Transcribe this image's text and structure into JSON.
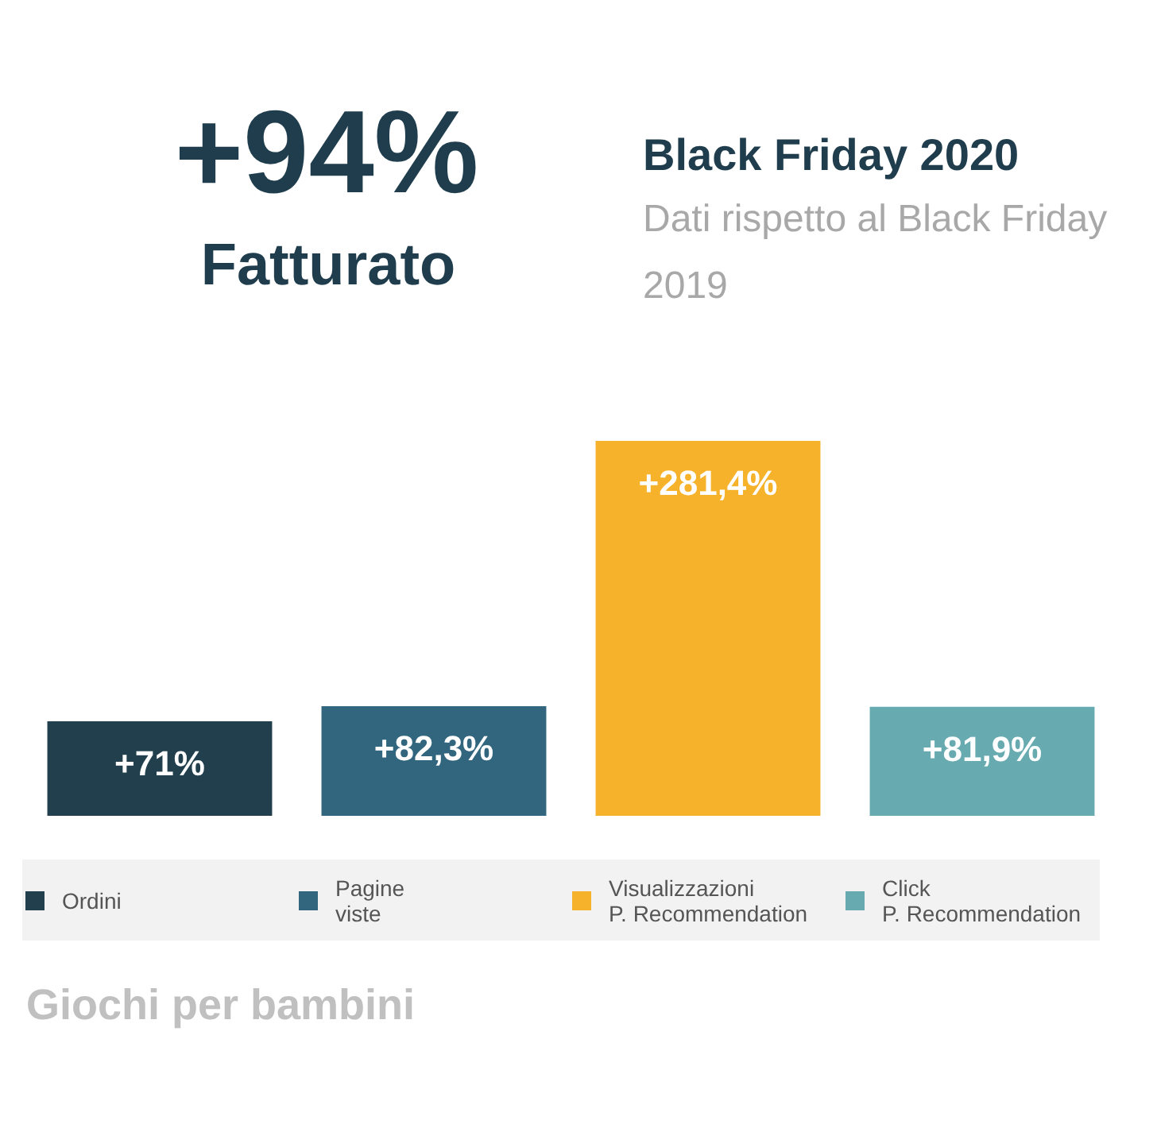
{
  "chart_data": {
    "type": "bar",
    "title": "Black Friday 2020",
    "subtitle": "Dati rispetto al Black Friday 2019",
    "annotations": [
      "+94%",
      "Fatturato",
      "Giochi per bambini"
    ],
    "categories": [
      null,
      null,
      null,
      null
    ],
    "stacked": true,
    "series": [
      {
        "name": "Ordini",
        "color": "#213f4d",
        "values": [
          71,
          null,
          null,
          null
        ],
        "value_labels": [
          "+71%",
          null,
          null,
          null
        ]
      },
      {
        "name": "Pagine viste",
        "color": "#31667e",
        "values": [
          null,
          82.3,
          null,
          null
        ],
        "value_labels": [
          null,
          "+82,3%",
          null,
          null
        ]
      },
      {
        "name": "Visualizzazioni P. Recommendation",
        "color": "#f6b22b",
        "values": [
          null,
          null,
          281.4,
          null
        ],
        "value_labels": [
          null,
          null,
          "+281,4%",
          null
        ]
      },
      {
        "name": "Click P. Recommendation",
        "color": "#67abb0",
        "values": [
          null,
          null,
          null,
          81.9
        ],
        "value_labels": [
          null,
          null,
          null,
          "+81,9%"
        ]
      }
    ],
    "tick_labels": false,
    "grid": false,
    "legend": "bottom"
  }
}
